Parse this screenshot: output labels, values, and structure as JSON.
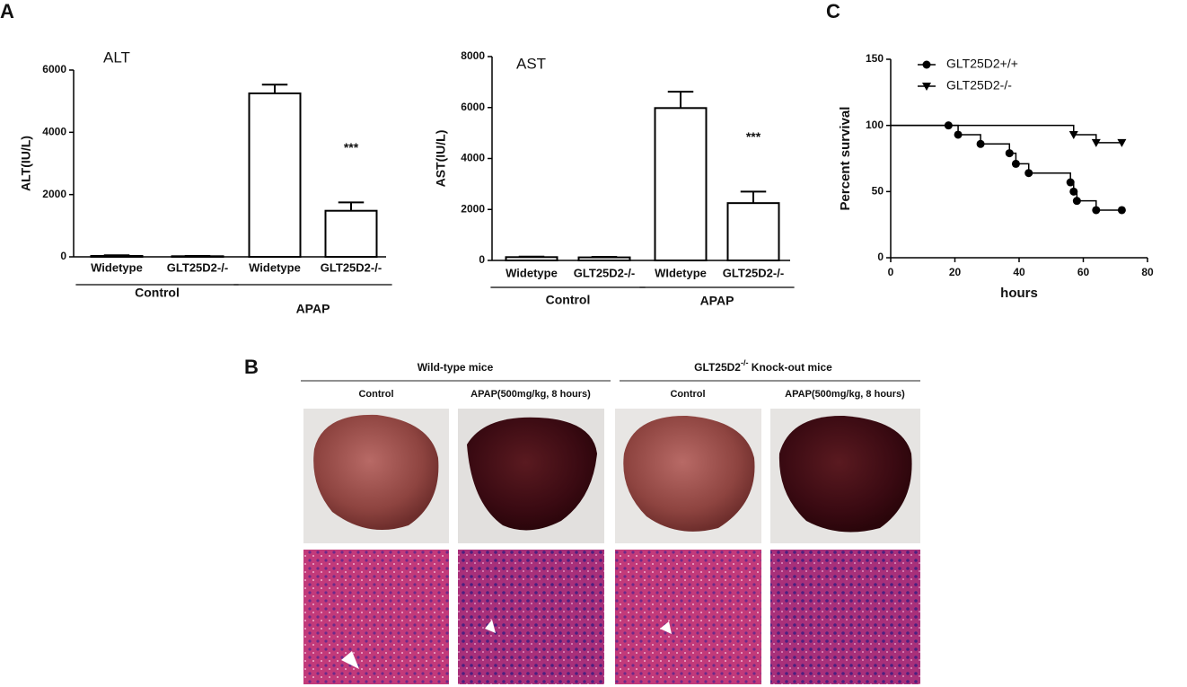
{
  "panel_labels": [
    "A",
    "B",
    "C"
  ],
  "chart_data": [
    {
      "type": "bar",
      "title": "ALT",
      "y_label": "ALT(IU/L)",
      "categories": [
        "Widetype",
        "GLT25D2-/-",
        "Widetype",
        "GLT25D2-/-"
      ],
      "values": [
        30,
        20,
        5250,
        1480
      ],
      "errors": [
        20,
        10,
        280,
        270
      ],
      "groups": [
        {
          "label": "Control",
          "span": [
            0,
            1
          ]
        },
        {
          "label": "APAP",
          "span": [
            2,
            3
          ]
        }
      ],
      "annotations": [
        {
          "index": 3,
          "text": "***"
        }
      ],
      "color": "#ffffff",
      "ylim": [
        0,
        6000
      ],
      "yticks": [
        0,
        2000,
        4000,
        6000
      ]
    },
    {
      "type": "bar",
      "title": "AST",
      "y_label": "AST(IU/L)",
      "categories": [
        "Widetype",
        "GLT25D2-/-",
        "WIdetype",
        "GLT25D2-/-"
      ],
      "values": [
        130,
        120,
        5980,
        2250
      ],
      "errors": [
        20,
        20,
        640,
        450
      ],
      "groups": [
        {
          "label": "Control",
          "span": [
            0,
            1
          ]
        },
        {
          "label": "APAP",
          "span": [
            2,
            3
          ]
        }
      ],
      "annotations": [
        {
          "index": 3,
          "text": "***"
        }
      ],
      "color": "#ffffff",
      "ylim": [
        0,
        8000
      ],
      "yticks": [
        0,
        2000,
        4000,
        6000,
        8000
      ]
    },
    {
      "type": "survival",
      "x_label": "hours",
      "y_label": "Percent survival",
      "series": [
        {
          "name": "GLT25D2+/+",
          "marker": "circle",
          "color": "#000000",
          "x": [
            0,
            18,
            21,
            28,
            37,
            39,
            43,
            56,
            57,
            58,
            64,
            72
          ],
          "values": [
            100,
            100,
            93,
            86,
            79,
            71,
            64,
            57,
            50,
            43,
            36,
            36
          ]
        },
        {
          "name": "GLT25D2-/-",
          "marker": "triangle-down",
          "color": "#000000",
          "x": [
            0,
            57,
            64,
            72
          ],
          "values": [
            100,
            93,
            87,
            87
          ]
        }
      ],
      "xlim": [
        0,
        80
      ],
      "xticks": [
        0,
        20,
        40,
        60,
        80
      ],
      "ylim": [
        0,
        150
      ],
      "yticks": [
        0,
        50,
        100,
        150
      ],
      "legend": "top-left"
    }
  ],
  "panel_b": {
    "groups": [
      {
        "name": "Wild-type  mice"
      },
      {
        "name": "GLT25D2",
        "superscript": "-/-",
        "suffix": " Knock-out mice"
      }
    ],
    "columns": [
      "Control",
      "APAP(500mg/kg, 8 hours)",
      "Control",
      "APAP(500mg/kg, 8 hours)"
    ]
  }
}
